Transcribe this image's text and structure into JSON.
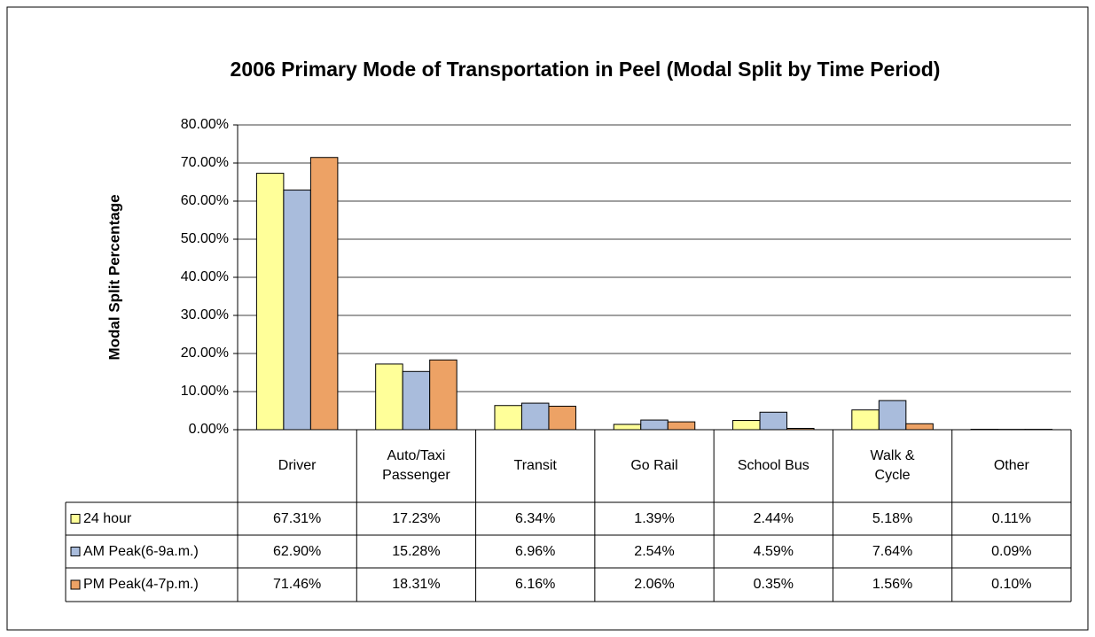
{
  "chart_data": {
    "type": "bar",
    "title": "2006 Primary Mode of Transportation in Peel (Modal Split by Time Period)",
    "y_label": "Modal Split Percentage",
    "categories": [
      "Driver",
      "Auto/Taxi Passenger",
      "Transit",
      "Go Rail",
      "School Bus",
      "Walk & Cycle",
      "Other"
    ],
    "series": [
      {
        "name": "24 hour",
        "color": "#ffff99",
        "values": [
          67.31,
          17.23,
          6.34,
          1.39,
          2.44,
          5.18,
          0.11
        ],
        "value_labels": [
          "67.31%",
          "17.23%",
          "6.34%",
          "1.39%",
          "2.44%",
          "5.18%",
          "0.11%"
        ]
      },
      {
        "name": "AM Peak(6-9a.m.)",
        "color": "#a9bcdc",
        "values": [
          62.9,
          15.28,
          6.96,
          2.54,
          4.59,
          7.64,
          0.09
        ],
        "value_labels": [
          "62.90%",
          "15.28%",
          "6.96%",
          "2.54%",
          "4.59%",
          "7.64%",
          "0.09%"
        ]
      },
      {
        "name": "PM Peak(4-7p.m.)",
        "color": "#eda265",
        "values": [
          71.46,
          18.31,
          6.16,
          2.06,
          0.35,
          1.56,
          0.1
        ],
        "value_labels": [
          "71.46%",
          "18.31%",
          "6.16%",
          "2.06%",
          "0.35%",
          "1.56%",
          "0.10%"
        ]
      }
    ],
    "ylim": [
      0,
      80
    ],
    "yticks": [
      {
        "value": 0,
        "label": "0.00%"
      },
      {
        "value": 10,
        "label": "10.00%"
      },
      {
        "value": 20,
        "label": "20.00%"
      },
      {
        "value": 30,
        "label": "30.00%"
      },
      {
        "value": 40,
        "label": "40.00%"
      },
      {
        "value": 50,
        "label": "50.00%"
      },
      {
        "value": 60,
        "label": "60.00%"
      },
      {
        "value": 70,
        "label": "70.00%"
      },
      {
        "value": 80,
        "label": "80.00%"
      }
    ],
    "grid": true
  }
}
